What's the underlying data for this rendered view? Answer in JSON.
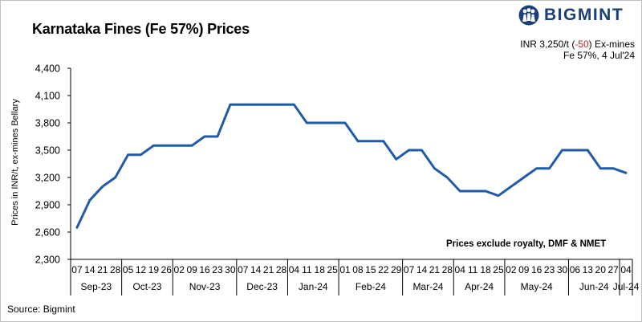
{
  "title": "Karnataka Fines (Fe 57%) Prices",
  "brand": {
    "name": "BIGMINT",
    "color": "#1a3f7a",
    "icon": "people-group-icon"
  },
  "price_info": {
    "prefix": "INR 3,250/t (",
    "change": "-50",
    "suffix": ") Ex-mines",
    "line2": "Fe 57%, 4 Jul'24",
    "change_color": "#d11f1f"
  },
  "note": "Prices exclude royalty, DMF & NMET",
  "source": "Source: Bigmint",
  "chart_data": {
    "type": "line",
    "title": "Karnataka Fines (Fe 57%) Prices",
    "ylabel": "Prices in INR/t, ex-mines Bellary",
    "xlabel": "",
    "ylim": [
      2300,
      4400
    ],
    "yticks": [
      "2,300",
      "2,600",
      "2,900",
      "3,200",
      "3,500",
      "3,800",
      "4,100",
      "4,400"
    ],
    "ytick_values": [
      2300,
      2600,
      2900,
      3200,
      3500,
      3800,
      4100,
      4400
    ],
    "line_color": "#1f5ba8",
    "grid": false,
    "x": [
      "07",
      "14",
      "21",
      "28",
      "05",
      "12",
      "19",
      "26",
      "02",
      "09",
      "16",
      "23",
      "30",
      "07",
      "14",
      "21",
      "28",
      "04",
      "11",
      "18",
      "25",
      "01",
      "08",
      "15",
      "22",
      "29",
      "07",
      "14",
      "21",
      "28",
      "04",
      "11",
      "18",
      "25",
      "02",
      "09",
      "16",
      "23",
      "30",
      "06",
      "13",
      "20",
      "27",
      "04"
    ],
    "months": [
      {
        "label": "Sep-23",
        "count": 4
      },
      {
        "label": "Oct-23",
        "count": 4
      },
      {
        "label": "Nov-23",
        "count": 5
      },
      {
        "label": "Dec-23",
        "count": 4
      },
      {
        "label": "Jan-24",
        "count": 4
      },
      {
        "label": "Feb-24",
        "count": 5
      },
      {
        "label": "Mar-24",
        "count": 4
      },
      {
        "label": "Apr-24",
        "count": 4
      },
      {
        "label": "May-24",
        "count": 5
      },
      {
        "label": "Jun-24",
        "count": 4
      },
      {
        "label": "Jul-24",
        "count": 1
      }
    ],
    "series": [
      {
        "values": [
          2650,
          2950,
          3100,
          3200,
          3450,
          3450,
          3550,
          3550,
          3550,
          3550,
          3650,
          3650,
          4000,
          4000,
          4000,
          4000,
          4000,
          4000,
          3800,
          3800,
          3800,
          3800,
          3600,
          3600,
          3600,
          3400,
          3500,
          3500,
          3300,
          3200,
          3050,
          3050,
          3050,
          3000,
          3100,
          3200,
          3300,
          3300,
          3500,
          3500,
          3500,
          3300,
          3300,
          3250
        ]
      }
    ]
  }
}
